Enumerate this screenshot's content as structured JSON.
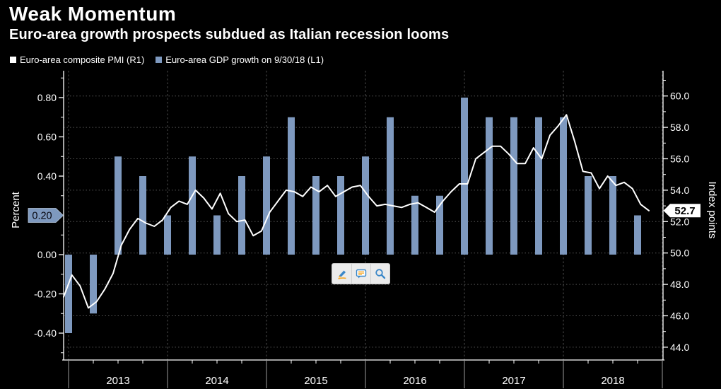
{
  "title": "Weak Momentum",
  "subtitle": "Euro-area growth prospects subdued as Italian recession looms",
  "legend": {
    "items": [
      {
        "label": "Euro-area composite PMI (R1)",
        "swatch": "#ffffff"
      },
      {
        "label": "Euro-area GDP growth on 9/30/18 (L1)",
        "swatch": "#7e99bf"
      }
    ]
  },
  "left_axis": {
    "title": "Percent",
    "ticks": [
      "0.80",
      "0.60",
      "0.40",
      "0.20",
      "0.00",
      "-0.20",
      "-0.40"
    ],
    "marker": "0.20"
  },
  "right_axis": {
    "title": "Index points",
    "ticks": [
      "60.0",
      "58.0",
      "56.0",
      "54.0",
      "52.0",
      "50.0",
      "48.0",
      "46.0",
      "44.0"
    ],
    "marker": "52.7"
  },
  "x_axis": {
    "years": [
      "2013",
      "2014",
      "2015",
      "2016",
      "2017",
      "2018"
    ]
  },
  "toolbar": {
    "buttons": [
      "annotate",
      "comment",
      "zoom"
    ]
  },
  "colors": {
    "background": "#000000",
    "bar": "#7e99bf",
    "line": "#ffffff",
    "grid_h": "#565656",
    "grid_v": "#4c4c4c",
    "axis": "#ffffff",
    "band_divider": "#9a9a9a",
    "marker_left_fill": "#7e99bf",
    "marker_left_text": "#06060e",
    "marker_right_fill": "#ffffff",
    "marker_right_text": "#000000"
  },
  "chart_data": {
    "type": "bar+line",
    "title": "Weak Momentum",
    "subtitle": "Euro-area growth prospects subdued as Italian recession looms",
    "legend_position": "top-left",
    "grid": "horizontal dotted lines at right-axis ticks; vertical dashed lines at year boundaries",
    "left_axis": {
      "label": "Percent",
      "ticks": [
        0.8,
        0.6,
        0.4,
        0.2,
        0.0,
        -0.2,
        -0.4
      ],
      "minor_tick_step": 0.1,
      "range": [
        -0.54,
        0.94
      ],
      "latest_value_marker": 0.2
    },
    "right_axis": {
      "label": "Index points",
      "ticks": [
        60.0,
        58.0,
        56.0,
        54.0,
        52.0,
        50.0,
        48.0,
        46.0,
        44.0
      ],
      "minor_tick_step": 1.0,
      "range": [
        43.2,
        61.6
      ],
      "latest_value_marker": 52.7
    },
    "x_axis": {
      "years": [
        2013,
        2014,
        2015,
        2016,
        2017,
        2018
      ],
      "quarter_ticks": true
    },
    "series": [
      {
        "name": "Euro-area GDP growth on 9/30/18 (L1)",
        "type": "bar",
        "axis": "left",
        "unit": "percent, quarter-on-quarter",
        "categories": [
          "2012 Q4",
          "2013 Q1",
          "2013 Q2",
          "2013 Q3",
          "2013 Q4",
          "2014 Q1",
          "2014 Q2",
          "2014 Q3",
          "2014 Q4",
          "2015 Q1",
          "2015 Q2",
          "2015 Q3",
          "2015 Q4",
          "2016 Q1",
          "2016 Q2",
          "2016 Q3",
          "2016 Q4",
          "2017 Q1",
          "2017 Q2",
          "2017 Q3",
          "2017 Q4",
          "2018 Q1",
          "2018 Q2",
          "2018 Q3"
        ],
        "values": [
          -0.4,
          -0.3,
          0.5,
          0.4,
          0.2,
          0.5,
          0.2,
          0.4,
          0.5,
          0.7,
          0.4,
          0.4,
          0.5,
          0.7,
          0.3,
          0.3,
          0.8,
          0.7,
          0.7,
          0.7,
          0.7,
          0.4,
          0.4,
          0.2
        ]
      },
      {
        "name": "Euro-area composite PMI (R1)",
        "type": "line",
        "axis": "right",
        "unit": "index points, monthly",
        "x_start": "2012-12",
        "x_end": "2018-11",
        "values": [
          47.2,
          48.6,
          47.9,
          46.5,
          46.9,
          47.7,
          48.7,
          50.5,
          51.5,
          52.2,
          51.9,
          51.7,
          52.1,
          52.9,
          53.3,
          53.1,
          54.0,
          53.5,
          52.8,
          53.8,
          52.5,
          52.0,
          52.1,
          51.1,
          51.4,
          52.6,
          53.3,
          54.0,
          53.9,
          53.6,
          54.2,
          53.9,
          54.3,
          53.6,
          53.9,
          54.2,
          54.3,
          53.6,
          53.0,
          53.1,
          53.0,
          52.9,
          53.1,
          53.2,
          52.9,
          52.6,
          53.3,
          53.9,
          54.4,
          54.4,
          56.0,
          56.4,
          56.8,
          56.8,
          56.3,
          55.7,
          55.7,
          56.7,
          56.0,
          57.5,
          58.1,
          58.8,
          57.1,
          55.2,
          55.1,
          54.1,
          54.9,
          54.3,
          54.5,
          54.1,
          53.1,
          52.7
        ]
      }
    ]
  }
}
